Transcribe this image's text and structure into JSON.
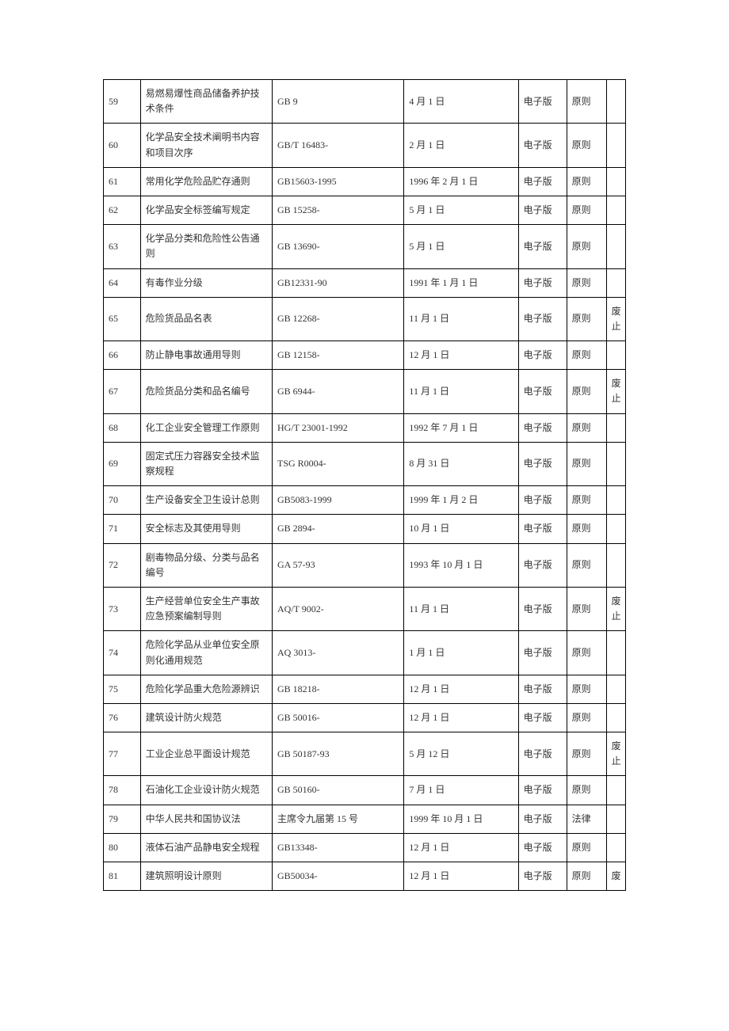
{
  "table": {
    "columns": {
      "widths": [
        42,
        150,
        150,
        130,
        55,
        45,
        22
      ]
    },
    "style": {
      "border_color": "#000000",
      "background_color": "#ffffff",
      "font_family": "SimSun",
      "font_size": 12,
      "text_color": "#333333"
    },
    "rows": [
      {
        "num": "59",
        "name": "易燃易爆性商品储备养护技术条件",
        "code": "GB 9",
        "date": "4 月 1 日",
        "format": "电子版",
        "type": "原则",
        "status": ""
      },
      {
        "num": "60",
        "name": "化学品安全技术阐明书内容和项目次序",
        "code": "GB/T 16483-",
        "date": "2 月 1 日",
        "format": "电子版",
        "type": "原则",
        "status": ""
      },
      {
        "num": "61",
        "name": "常用化学危险品贮存通则",
        "code": "GB15603-1995",
        "date": "1996 年 2 月 1 日",
        "format": "电子版",
        "type": "原则",
        "status": ""
      },
      {
        "num": "62",
        "name": "化学品安全标签编写规定",
        "code": "GB 15258-",
        "date": "5 月 1 日",
        "format": "电子版",
        "type": "原则",
        "status": ""
      },
      {
        "num": "63",
        "name": "化学品分类和危险性公告通则",
        "code": "GB 13690-",
        "date": "5 月 1 日",
        "format": "电子版",
        "type": "原则",
        "status": ""
      },
      {
        "num": "64",
        "name": "有毒作业分级",
        "code": "GB12331-90",
        "date": "1991 年 1 月 1 日",
        "format": "电子版",
        "type": "原则",
        "status": ""
      },
      {
        "num": "65",
        "name": "危险货品品名表",
        "code": "GB 12268-",
        "date": "11 月 1 日",
        "format": "电子版",
        "type": "原则",
        "status": "废止"
      },
      {
        "num": "66",
        "name": "防止静电事故通用导则",
        "code": "GB 12158-",
        "date": "12 月 1 日",
        "format": "电子版",
        "type": "原则",
        "status": ""
      },
      {
        "num": "67",
        "name": "危险货品分类和品名编号",
        "code": "GB 6944-",
        "date": "11 月 1 日",
        "format": "电子版",
        "type": "原则",
        "status": "废止"
      },
      {
        "num": "68",
        "name": "化工企业安全管理工作原则",
        "code": "HG/T 23001-1992",
        "date": "1992 年 7 月 1 日",
        "format": "电子版",
        "type": "原则",
        "status": ""
      },
      {
        "num": "69",
        "name": "固定式压力容器安全技术监察规程",
        "code": "TSG R0004-",
        "date": "8 月 31 日",
        "format": "电子版",
        "type": "原则",
        "status": ""
      },
      {
        "num": "70",
        "name": "生产设备安全卫生设计总则",
        "code": "GB5083-1999",
        "date": "1999 年 1 月 2 日",
        "format": "电子版",
        "type": "原则",
        "status": ""
      },
      {
        "num": "71",
        "name": "安全标志及其使用导则",
        "code": "GB 2894-",
        "date": "10 月 1 日",
        "format": "电子版",
        "type": "原则",
        "status": ""
      },
      {
        "num": "72",
        "name": "剧毒物品分级、分类与品名编号",
        "code": "GA 57-93",
        "date": "1993 年 10 月 1 日",
        "format": "电子版",
        "type": "原则",
        "status": ""
      },
      {
        "num": "73",
        "name": "生产经营单位安全生产事故应急预案编制导则",
        "code": "AQ/T 9002-",
        "date": "11 月 1 日",
        "format": "电子版",
        "type": "原则",
        "status": "废止"
      },
      {
        "num": "74",
        "name": "危险化学品从业单位安全原则化通用规范",
        "code": "AQ 3013-",
        "date": "1 月 1 日",
        "format": "电子版",
        "type": "原则",
        "status": ""
      },
      {
        "num": "75",
        "name": "危险化学品重大危险源辨识",
        "code": "GB 18218-",
        "date": "12 月 1 日",
        "format": "电子版",
        "type": "原则",
        "status": ""
      },
      {
        "num": "76",
        "name": "建筑设计防火规范",
        "code": "GB 50016-",
        "date": "12 月 1 日",
        "format": "电子版",
        "type": "原则",
        "status": ""
      },
      {
        "num": "77",
        "name": "工业企业总平面设计规范",
        "code": "GB 50187-93",
        "date": "5 月 12 日",
        "format": "电子版",
        "type": "原则",
        "status": "废止"
      },
      {
        "num": "78",
        "name": "石油化工企业设计防火规范",
        "code": "GB 50160-",
        "date": "7 月 1 日",
        "format": "电子版",
        "type": "原则",
        "status": ""
      },
      {
        "num": "79",
        "name": "中华人民共和国协议法",
        "code": "主席令九届第 15 号",
        "date": "1999 年 10 月 1 日",
        "format": "电子版",
        "type": "法律",
        "status": ""
      },
      {
        "num": "80",
        "name": "液体石油产品静电安全规程",
        "code": "GB13348-",
        "date": "12 月 1 日",
        "format": "电子版",
        "type": "原则",
        "status": ""
      },
      {
        "num": "81",
        "name": "建筑照明设计原则",
        "code": "GB50034-",
        "date": "12 月 1 日",
        "format": "电子版",
        "type": "原则",
        "status": "废"
      }
    ]
  }
}
